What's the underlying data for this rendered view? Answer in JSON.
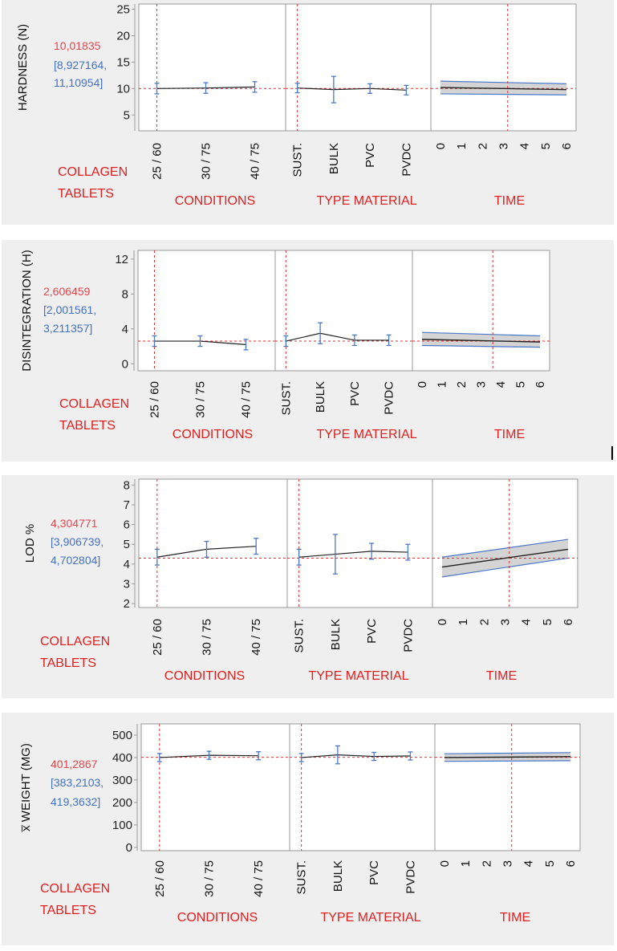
{
  "colors": {
    "panel_bg": "#efefef",
    "frame": "#9a9a9a",
    "ref_line": "#e03030",
    "ci": "#4a78c8",
    "band": "#c9c9c9",
    "axis_title": "#e02020",
    "mean_text": "#e0484f",
    "interval_text": "#4472c4",
    "line": "#222222"
  },
  "chart_data": [
    {
      "type": "line",
      "title": "",
      "ylabel": "HARDNESS (N)",
      "ylim": [
        2,
        26
      ],
      "yticks": [
        "5",
        "10",
        "15",
        "20",
        "25"
      ],
      "summary": {
        "mean": "10,01835",
        "interval": [
          "[8,927164,",
          "11,10954]"
        ]
      },
      "product_label": [
        "COLLAGEN",
        "TABLETS"
      ],
      "reference_y": 10.018,
      "panels": [
        {
          "xlabel": "CONDITIONS",
          "categories": [
            "25 / 60",
            "30 / 75",
            "40 / 75"
          ],
          "values": [
            10.0,
            10.1,
            10.3
          ],
          "lower": [
            9.0,
            9.1,
            9.3
          ],
          "upper": [
            11.0,
            11.1,
            11.3
          ]
        },
        {
          "xlabel": "TYPE MATERIAL",
          "categories": [
            "SUST.",
            "BULK",
            "PVC",
            "PVDC"
          ],
          "values": [
            10.1,
            9.8,
            10.0,
            9.7
          ],
          "lower": [
            9.2,
            7.3,
            9.1,
            8.8
          ],
          "upper": [
            11.0,
            12.3,
            10.9,
            10.6
          ]
        },
        {
          "xlabel": "TIME",
          "categories": [
            "0",
            "1",
            "2",
            "3",
            "4",
            "5",
            "6"
          ],
          "x": [
            0,
            6
          ],
          "values": [
            10.2,
            9.8
          ],
          "band_lower": [
            9.0,
            8.8
          ],
          "band_upper": [
            11.4,
            10.9
          ],
          "reference_x": 3.2
        }
      ]
    },
    {
      "type": "line",
      "title": "",
      "ylabel": "DISINTEGRATION (H)",
      "ylim": [
        -0.8,
        13
      ],
      "yticks": [
        "0",
        "4",
        "8",
        "12"
      ],
      "summary": {
        "mean": "2,606459",
        "interval": [
          "[2,001561,",
          "3,211357]"
        ]
      },
      "product_label": [
        "COLLAGEN",
        "TABLETS"
      ],
      "reference_y": 2.6,
      "panels": [
        {
          "xlabel": "CONDITIONS",
          "categories": [
            "25 / 60",
            "30 / 75",
            "40 / 75"
          ],
          "values": [
            2.6,
            2.6,
            2.2
          ],
          "lower": [
            2.0,
            2.0,
            1.6
          ],
          "upper": [
            3.2,
            3.2,
            2.8
          ]
        },
        {
          "xlabel": "TYPE MATERIAL",
          "categories": [
            "SUST.",
            "BULK",
            "PVC",
            "PVDC"
          ],
          "values": [
            2.6,
            3.5,
            2.7,
            2.7
          ],
          "lower": [
            2.0,
            2.3,
            2.1,
            2.1
          ],
          "upper": [
            3.2,
            4.7,
            3.3,
            3.3
          ]
        },
        {
          "xlabel": "TIME",
          "categories": [
            "0",
            "1",
            "2",
            "3",
            "4",
            "5",
            "6"
          ],
          "x": [
            0,
            6
          ],
          "values": [
            2.8,
            2.5
          ],
          "band_lower": [
            2.1,
            1.9
          ],
          "band_upper": [
            3.6,
            3.2
          ],
          "reference_x": 3.6
        }
      ]
    },
    {
      "type": "line",
      "title": "",
      "ylabel": "LOD %",
      "ylim": [
        1.8,
        8.3
      ],
      "yticks": [
        "2",
        "3",
        "4",
        "5",
        "6",
        "7",
        "8"
      ],
      "summary": {
        "mean": "4,304771",
        "interval": [
          "[3,906739,",
          "4,702804]"
        ]
      },
      "product_label": [
        "COLLAGEN",
        "TABLETS"
      ],
      "reference_y": 4.3,
      "panels": [
        {
          "xlabel": "CONDITIONS",
          "categories": [
            "25 / 60",
            "30 / 75",
            "40 / 75"
          ],
          "values": [
            4.35,
            4.75,
            4.9
          ],
          "lower": [
            3.95,
            4.35,
            4.5
          ],
          "upper": [
            4.75,
            5.15,
            5.3
          ]
        },
        {
          "xlabel": "TYPE MATERIAL",
          "categories": [
            "SUST.",
            "BULK",
            "PVC",
            "PVDC"
          ],
          "values": [
            4.35,
            4.5,
            4.65,
            4.6
          ],
          "lower": [
            3.95,
            3.5,
            4.25,
            4.2
          ],
          "upper": [
            4.75,
            5.5,
            5.05,
            5.0
          ]
        },
        {
          "xlabel": "TIME",
          "categories": [
            "0",
            "1",
            "2",
            "3",
            "4",
            "5",
            "6"
          ],
          "x": [
            0,
            6
          ],
          "values": [
            3.85,
            4.75
          ],
          "band_lower": [
            3.35,
            4.3
          ],
          "band_upper": [
            4.35,
            5.25
          ],
          "reference_x": 3.2
        }
      ]
    },
    {
      "type": "line",
      "title": "",
      "ylabel": "x̅ WEIGHT (MG)",
      "ylim": [
        -15,
        550
      ],
      "yticks": [
        "0",
        "100",
        "200",
        "300",
        "400",
        "500"
      ],
      "summary": {
        "mean": "401,2867",
        "interval": [
          "[383,2103,",
          "419,3632]"
        ]
      },
      "product_label": [
        "COLLAGEN",
        "TABLETS"
      ],
      "reference_y": 401.3,
      "panels": [
        {
          "xlabel": "CONDITIONS",
          "categories": [
            "25 / 60",
            "30 / 75",
            "40 / 75"
          ],
          "values": [
            400,
            410,
            408
          ],
          "lower": [
            382,
            392,
            390
          ],
          "upper": [
            418,
            428,
            426
          ]
        },
        {
          "xlabel": "TYPE MATERIAL",
          "categories": [
            "SUST.",
            "BULK",
            "PVC",
            "PVDC"
          ],
          "values": [
            400,
            412,
            405,
            407
          ],
          "lower": [
            382,
            372,
            387,
            389
          ],
          "upper": [
            418,
            452,
            423,
            425
          ]
        },
        {
          "xlabel": "TIME",
          "categories": [
            "0",
            "1",
            "2",
            "3",
            "4",
            "5",
            "6"
          ],
          "x": [
            0,
            6
          ],
          "values": [
            400,
            404
          ],
          "band_lower": [
            383,
            386
          ],
          "band_upper": [
            417,
            422
          ],
          "reference_x": 3.2
        }
      ]
    }
  ]
}
